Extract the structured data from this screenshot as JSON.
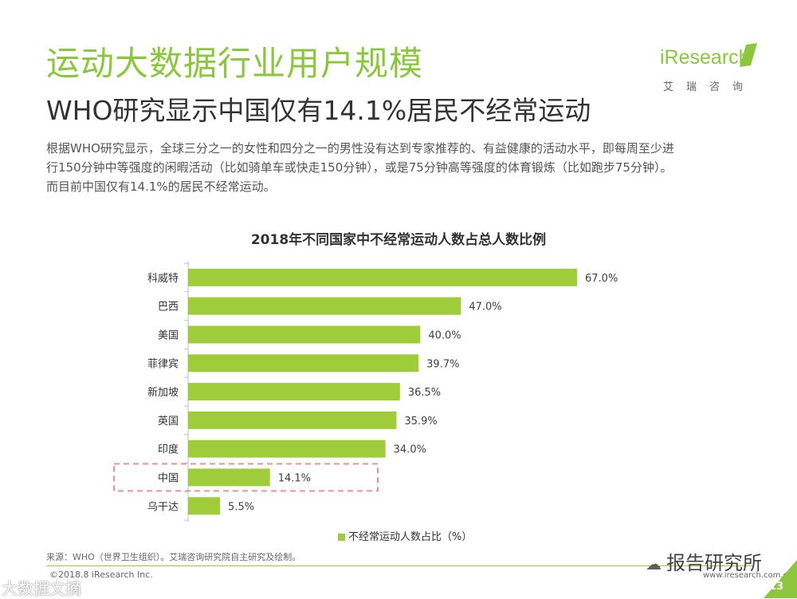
{
  "header": {
    "title": "运动大数据行业用户规模",
    "subtitle": "WHO研究显示中国仅有14.1%居民不经常运动",
    "intro_line1": "根据WHO研究显示，全球三分之一的女性和四分之一的男性没有达到专家推荐的、有益健康的活动水平，即每周至少进",
    "intro_line2": "行150分钟中等强度的闲暇活动（比如骑单车或快走150分钟），或是75分钟高等强度的体育锻炼（比如跑步75分钟）。",
    "intro_line3": "而目前中国仅有14.1%的居民不经常运动。"
  },
  "logo": {
    "word": "iResearch",
    "cn": "艾瑞咨询"
  },
  "chart_data": {
    "type": "bar",
    "orientation": "horizontal",
    "title": "2018年不同国家中不经常运动人数占总人数比例",
    "categories": [
      "科威特",
      "巴西",
      "美国",
      "菲律宾",
      "新加坡",
      "英国",
      "印度",
      "中国",
      "乌干达"
    ],
    "series": [
      {
        "name": "不经常运动人数占比（%）",
        "values": [
          67.0,
          47.0,
          40.0,
          39.7,
          36.5,
          35.9,
          34.0,
          14.1,
          5.5
        ]
      }
    ],
    "value_labels": [
      "67.0%",
      "47.0%",
      "40.0%",
      "39.7%",
      "36.5%",
      "35.9%",
      "34.0%",
      "14.1%",
      "5.5%"
    ],
    "highlight_category": "中国",
    "xlim": [
      0,
      70
    ],
    "legend": "bottom-center",
    "grid": false,
    "color": "#9fcc3b",
    "highlight_color": "#e8919b"
  },
  "footer": {
    "source": "来源：WHO（世界卫生组织）。艾瑞咨询研究院自主研究及绘制。",
    "copyright": "©2018.8 iResearch Inc.",
    "website": "www.iresearch.com.cn",
    "page": "13"
  },
  "watermarks": {
    "right": "报告研究所",
    "right_icon": "wechat-icon",
    "left": "大数据文摘"
  },
  "colors": {
    "accent": "#8cc63f",
    "bar": "#9fcc3b",
    "text": "#333333"
  }
}
